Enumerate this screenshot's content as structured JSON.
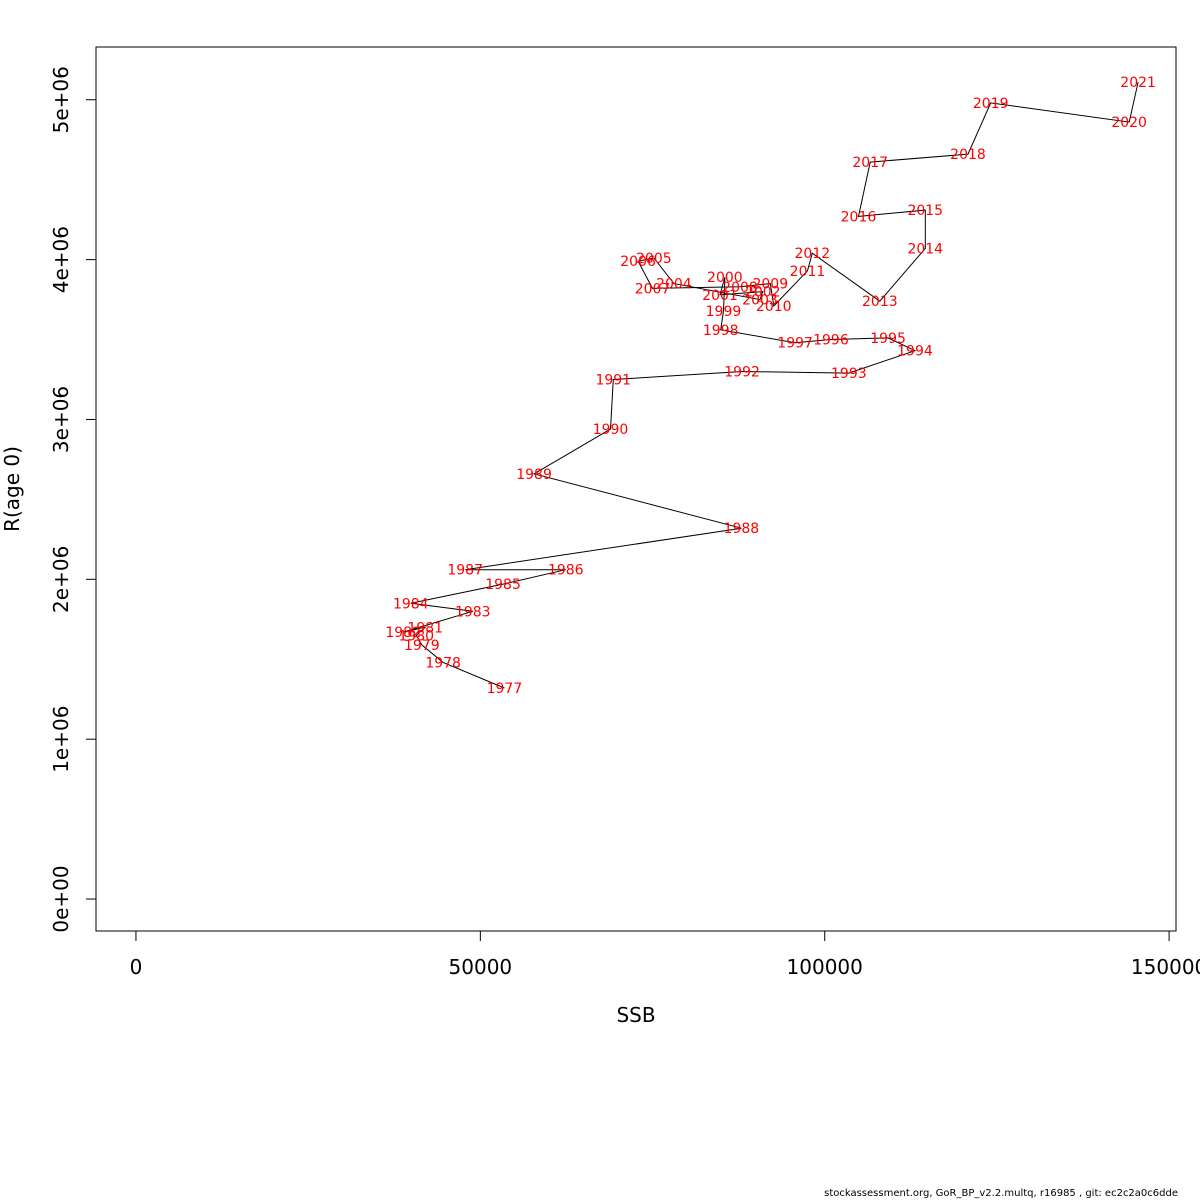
{
  "chart_data": {
    "type": "scatter",
    "xlabel": "SSB",
    "ylabel": "R(age 0)",
    "xlim": [
      -5800,
      151000
    ],
    "ylim": [
      -200000,
      5330000
    ],
    "x_ticks": [
      0,
      50000,
      100000,
      150000
    ],
    "x_tick_labels": [
      "0",
      "50000",
      "100000",
      "150000"
    ],
    "y_ticks": [
      0,
      1000000,
      2000000,
      3000000,
      4000000,
      5000000
    ],
    "y_tick_labels": [
      "0e+00",
      "1e+06",
      "2e+06",
      "3e+06",
      "4e+06",
      "5e+06"
    ],
    "grid": false,
    "line_color": "#000000",
    "label_color": "#ff0000",
    "points": [
      {
        "year": "1977",
        "x": 53500,
        "y": 1320000
      },
      {
        "year": "1978",
        "x": 44600,
        "y": 1480000
      },
      {
        "year": "1979",
        "x": 41500,
        "y": 1590000
      },
      {
        "year": "1980",
        "x": 40700,
        "y": 1650000
      },
      {
        "year": "1981",
        "x": 42000,
        "y": 1700000
      },
      {
        "year": "1982",
        "x": 38800,
        "y": 1670000
      },
      {
        "year": "1983",
        "x": 48900,
        "y": 1800000
      },
      {
        "year": "1984",
        "x": 39900,
        "y": 1850000
      },
      {
        "year": "1985",
        "x": 53300,
        "y": 1970000
      },
      {
        "year": "1986",
        "x": 62400,
        "y": 2060000
      },
      {
        "year": "1987",
        "x": 47800,
        "y": 2060000
      },
      {
        "year": "1988",
        "x": 87900,
        "y": 2320000
      },
      {
        "year": "1989",
        "x": 57800,
        "y": 2660000
      },
      {
        "year": "1990",
        "x": 68900,
        "y": 2940000
      },
      {
        "year": "1991",
        "x": 69300,
        "y": 3250000
      },
      {
        "year": "1992",
        "x": 88000,
        "y": 3300000
      },
      {
        "year": "1993",
        "x": 103500,
        "y": 3290000
      },
      {
        "year": "1994",
        "x": 113100,
        "y": 3430000
      },
      {
        "year": "1995",
        "x": 109200,
        "y": 3510000
      },
      {
        "year": "1996",
        "x": 100900,
        "y": 3500000
      },
      {
        "year": "1997",
        "x": 95700,
        "y": 3480000
      },
      {
        "year": "1998",
        "x": 84900,
        "y": 3560000
      },
      {
        "year": "1999",
        "x": 85300,
        "y": 3680000
      },
      {
        "year": "2000",
        "x": 85500,
        "y": 3890000
      },
      {
        "year": "2001",
        "x": 84800,
        "y": 3780000
      },
      {
        "year": "2002",
        "x": 91000,
        "y": 3800000
      },
      {
        "year": "2003",
        "x": 90600,
        "y": 3750000
      },
      {
        "year": "2004",
        "x": 78100,
        "y": 3850000
      },
      {
        "year": "2005",
        "x": 75200,
        "y": 4010000
      },
      {
        "year": "2006",
        "x": 72900,
        "y": 3990000
      },
      {
        "year": "2007",
        "x": 75000,
        "y": 3820000
      },
      {
        "year": "2008",
        "x": 87700,
        "y": 3830000
      },
      {
        "year": "2009",
        "x": 92100,
        "y": 3850000
      },
      {
        "year": "2010",
        "x": 92600,
        "y": 3710000
      },
      {
        "year": "2011",
        "x": 97500,
        "y": 3930000
      },
      {
        "year": "2012",
        "x": 98200,
        "y": 4040000
      },
      {
        "year": "2013",
        "x": 108000,
        "y": 3740000
      },
      {
        "year": "2014",
        "x": 114600,
        "y": 4070000
      },
      {
        "year": "2015",
        "x": 114600,
        "y": 4310000
      },
      {
        "year": "2016",
        "x": 104900,
        "y": 4270000
      },
      {
        "year": "2017",
        "x": 106600,
        "y": 4610000
      },
      {
        "year": "2018",
        "x": 120800,
        "y": 4660000
      },
      {
        "year": "2019",
        "x": 124100,
        "y": 4980000
      },
      {
        "year": "2020",
        "x": 144200,
        "y": 4860000
      },
      {
        "year": "2021",
        "x": 145500,
        "y": 5110000
      }
    ]
  },
  "footer": "stockassessment.org, GoR_BP_v2.2.multq, r16985 , git: ec2c2a0c6dde"
}
